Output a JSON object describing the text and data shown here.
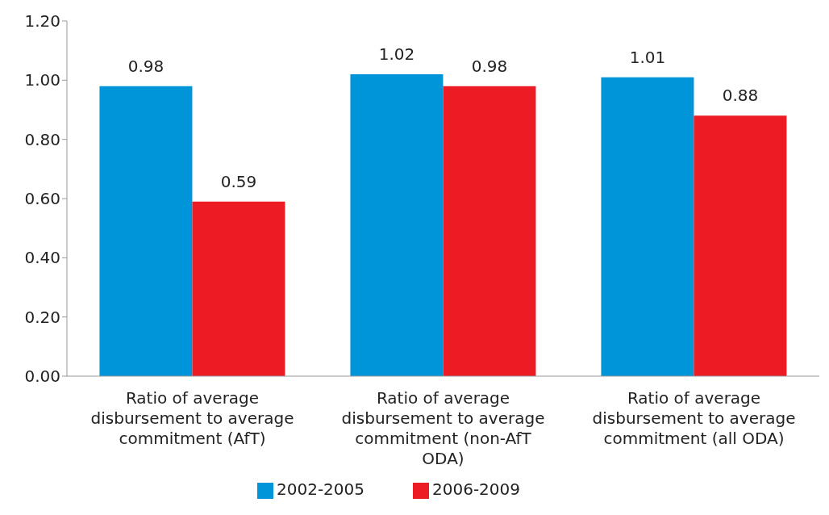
{
  "chart_data": {
    "type": "bar",
    "categories": [
      "Ratio of average disbursement to average commitment (AfT)",
      "Ratio of average disbursement to average commitment (non-AfT ODA)",
      "Ratio of average disbursement to average commitment (all ODA)"
    ],
    "series": [
      {
        "name": "2002-2005",
        "color": "#0095d9",
        "values": [
          0.98,
          1.02,
          1.01
        ],
        "value_labels": [
          "0.98",
          "1.02",
          "1.01"
        ]
      },
      {
        "name": "2006-2009",
        "color": "#ed1c24",
        "values": [
          0.59,
          0.98,
          0.88
        ],
        "value_labels": [
          "0.59",
          "0.98",
          "0.88"
        ]
      }
    ],
    "ylim": [
      0,
      1.2
    ],
    "yticks": [
      {
        "value": 0,
        "label": "0.00"
      },
      {
        "value": 0.2,
        "label": "0.20"
      },
      {
        "value": 0.4,
        "label": "0.40"
      },
      {
        "value": 0.6,
        "label": "0.60"
      },
      {
        "value": 0.8,
        "label": "0.80"
      },
      {
        "value": 1,
        "label": "1.00"
      },
      {
        "value": 1.2,
        "label": "1.20"
      }
    ],
    "grid": false,
    "legend": "bottom"
  }
}
